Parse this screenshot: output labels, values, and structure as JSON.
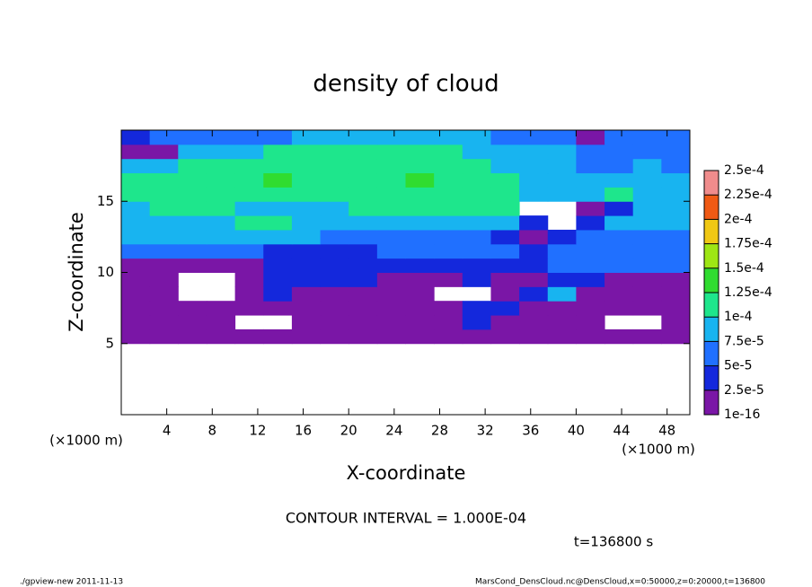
{
  "chart_data": {
    "type": "heatmap",
    "title": "density of cloud",
    "xlabel": "X-coordinate",
    "ylabel": "Z-coordinate",
    "xunit": "(×1000 m)",
    "xunit_right": "(×1000 m)",
    "note": "CONTOUR INTERVAL = 1.000E-04",
    "time_label": "t=136800 s",
    "footer_left": "./gpview-new  2011-11-13",
    "footer_right": "MarsCond_DensCloud.nc@DensCloud,x=0:50000,z=0:20000,t=136800",
    "xlim": [
      0,
      50
    ],
    "ylim": [
      0,
      20
    ],
    "xticks": [
      4,
      8,
      12,
      16,
      20,
      24,
      28,
      32,
      36,
      40,
      44,
      48
    ],
    "yticks": [
      5,
      10,
      15
    ],
    "x": [
      1.25,
      3.75,
      6.25,
      8.75,
      11.25,
      13.75,
      16.25,
      18.75,
      21.25,
      23.75,
      26.25,
      28.75,
      31.25,
      33.75,
      36.25,
      38.75,
      41.25,
      43.75,
      46.25,
      48.75
    ],
    "y": [
      0.5,
      1.5,
      2.5,
      3.5,
      4.5,
      5.5,
      6.5,
      7.5,
      8.5,
      9.5,
      10.5,
      11.5,
      12.5,
      13.5,
      14.5,
      15.5,
      16.5,
      17.5,
      18.5,
      19.5
    ],
    "z": [
      [
        null,
        null,
        null,
        null,
        null,
        null,
        null,
        null,
        null,
        null,
        null,
        null,
        null,
        null,
        null,
        null,
        null,
        null,
        null,
        null
      ],
      [
        null,
        null,
        null,
        null,
        null,
        null,
        null,
        null,
        null,
        null,
        null,
        null,
        null,
        null,
        null,
        null,
        null,
        null,
        null,
        null
      ],
      [
        null,
        null,
        null,
        null,
        null,
        null,
        null,
        null,
        null,
        null,
        null,
        null,
        null,
        null,
        null,
        null,
        null,
        null,
        null,
        null
      ],
      [
        null,
        null,
        null,
        null,
        null,
        null,
        null,
        null,
        null,
        null,
        null,
        null,
        null,
        null,
        null,
        null,
        null,
        null,
        null,
        null
      ],
      [
        null,
        null,
        null,
        null,
        null,
        null,
        null,
        null,
        null,
        null,
        null,
        null,
        null,
        null,
        null,
        null,
        null,
        null,
        null,
        null
      ],
      [
        1e-05,
        1e-05,
        1e-05,
        1e-05,
        1e-05,
        1e-05,
        1e-05,
        1e-05,
        1e-05,
        1e-05,
        1e-05,
        1e-05,
        1e-05,
        1e-05,
        1e-05,
        1e-05,
        1e-05,
        1e-05,
        1e-05,
        1e-05
      ],
      [
        1e-05,
        1e-05,
        1e-05,
        1e-05,
        null,
        null,
        1e-05,
        1e-05,
        1e-05,
        1e-05,
        1e-05,
        1e-05,
        4e-05,
        1e-05,
        1e-05,
        1e-05,
        1e-05,
        null,
        null,
        1e-05
      ],
      [
        1e-05,
        1e-05,
        1e-05,
        1e-05,
        1e-05,
        1e-05,
        1e-05,
        1e-05,
        1e-05,
        1e-05,
        1e-05,
        1e-05,
        4e-05,
        4e-05,
        1e-05,
        1e-05,
        1e-05,
        1e-05,
        1e-05,
        1e-05
      ],
      [
        1e-05,
        1e-05,
        null,
        null,
        1e-05,
        4e-05,
        1e-05,
        1e-05,
        1e-05,
        1e-05,
        1e-05,
        null,
        null,
        1e-05,
        4e-05,
        9e-05,
        1e-05,
        1e-05,
        1e-05,
        1e-05
      ],
      [
        1e-05,
        1e-05,
        null,
        null,
        1e-05,
        4e-05,
        4e-05,
        4e-05,
        4e-05,
        1e-05,
        1e-05,
        1e-05,
        4e-05,
        1e-05,
        1e-05,
        4e-05,
        4e-05,
        1e-05,
        1e-05,
        1e-05
      ],
      [
        1e-05,
        1e-05,
        1e-05,
        1e-05,
        1e-05,
        4e-05,
        4e-05,
        4e-05,
        4e-05,
        4e-05,
        4e-05,
        4e-05,
        4e-05,
        4e-05,
        4e-05,
        6e-05,
        6e-05,
        6e-05,
        6e-05,
        6e-05
      ],
      [
        6e-05,
        6e-05,
        6e-05,
        6e-05,
        6e-05,
        4e-05,
        4e-05,
        4e-05,
        4e-05,
        6e-05,
        6e-05,
        6e-05,
        6e-05,
        6e-05,
        4e-05,
        6e-05,
        6e-05,
        6e-05,
        6e-05,
        6e-05
      ],
      [
        9e-05,
        9e-05,
        9e-05,
        9e-05,
        9e-05,
        9e-05,
        9e-05,
        6e-05,
        6e-05,
        6e-05,
        6e-05,
        6e-05,
        6e-05,
        4e-05,
        1e-05,
        4e-05,
        6e-05,
        6e-05,
        6e-05,
        6e-05
      ],
      [
        9e-05,
        9e-05,
        9e-05,
        9e-05,
        0.00011,
        0.00011,
        9e-05,
        9e-05,
        9e-05,
        9e-05,
        9e-05,
        9e-05,
        9e-05,
        9e-05,
        4e-05,
        null,
        4e-05,
        9e-05,
        9e-05,
        9e-05
      ],
      [
        9e-05,
        0.00011,
        0.00011,
        0.00011,
        9e-05,
        9e-05,
        9e-05,
        9e-05,
        0.00011,
        0.00011,
        0.00011,
        0.00011,
        0.00011,
        0.00011,
        null,
        null,
        1e-05,
        4e-05,
        9e-05,
        9e-05
      ],
      [
        0.00011,
        0.00011,
        0.00011,
        0.00011,
        0.00011,
        0.00011,
        0.00011,
        0.00011,
        0.00011,
        0.00011,
        0.00011,
        0.00011,
        0.00011,
        0.00011,
        9e-05,
        9e-05,
        9e-05,
        0.00011,
        9e-05,
        9e-05
      ],
      [
        0.00011,
        0.00011,
        0.00011,
        0.00011,
        0.00011,
        0.00013,
        0.00011,
        0.00011,
        0.00011,
        0.00011,
        0.00013,
        0.00011,
        0.00011,
        0.00011,
        9e-05,
        9e-05,
        9e-05,
        9e-05,
        9e-05,
        9e-05
      ],
      [
        9e-05,
        9e-05,
        0.00011,
        0.00011,
        0.00011,
        0.00011,
        0.00011,
        0.00011,
        0.00011,
        0.00011,
        0.00011,
        0.00011,
        0.00011,
        9e-05,
        9e-05,
        9e-05,
        6e-05,
        6e-05,
        9e-05,
        6e-05
      ],
      [
        1e-05,
        1e-05,
        9e-05,
        9e-05,
        9e-05,
        0.00011,
        0.00011,
        0.00011,
        0.00011,
        0.00011,
        0.00011,
        0.00011,
        9e-05,
        9e-05,
        9e-05,
        9e-05,
        6e-05,
        6e-05,
        6e-05,
        6e-05
      ],
      [
        4e-05,
        6e-05,
        6e-05,
        6e-05,
        6e-05,
        6e-05,
        9e-05,
        9e-05,
        9e-05,
        9e-05,
        9e-05,
        9e-05,
        9e-05,
        6e-05,
        6e-05,
        6e-05,
        1e-05,
        6e-05,
        6e-05,
        6e-05
      ]
    ],
    "colorbar": {
      "levels": [
        {
          "value": 1e-16,
          "label": "1e-16"
        },
        {
          "value": 2.5e-05,
          "label": "2.5e-5"
        },
        {
          "value": 5e-05,
          "label": "5e-5"
        },
        {
          "value": 7.5e-05,
          "label": "7.5e-5"
        },
        {
          "value": 0.0001,
          "label": "1e-4"
        },
        {
          "value": 0.000125,
          "label": "1.25e-4"
        },
        {
          "value": 0.00015,
          "label": "1.5e-4"
        },
        {
          "value": 0.000175,
          "label": "1.75e-4"
        },
        {
          "value": 0.0002,
          "label": "2e-4"
        },
        {
          "value": 0.000225,
          "label": "2.25e-4"
        },
        {
          "value": 0.00025,
          "label": "2.5e-4"
        }
      ],
      "colors": [
        "#7a16a6",
        "#1428dc",
        "#2070ff",
        "#18b4f0",
        "#1ee68c",
        "#30dc30",
        "#9ee614",
        "#f0c814",
        "#f05a14",
        "#f08c8c"
      ]
    }
  }
}
